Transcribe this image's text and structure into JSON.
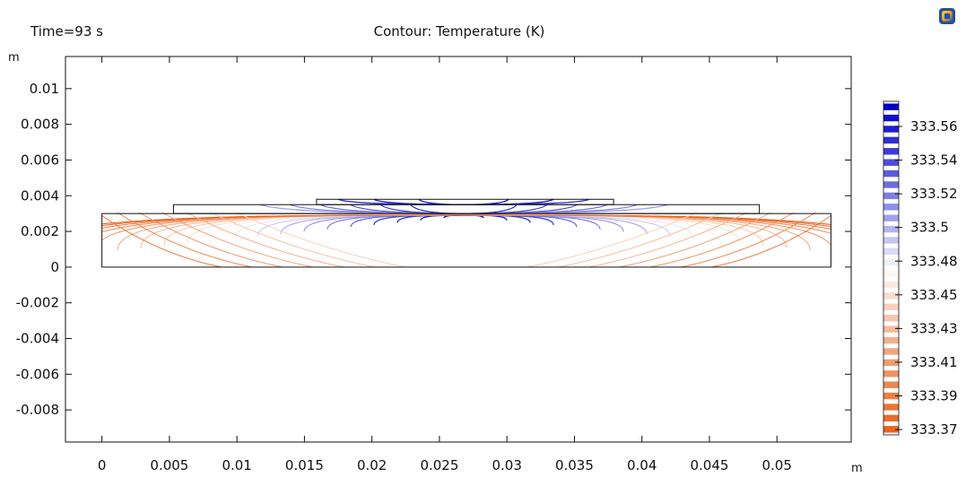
{
  "chart_data": {
    "type": "contour",
    "time_label": "Time=93 s",
    "title": "Contour: Temperature (K)",
    "x_unit": "m",
    "y_unit": "m",
    "xlim": [
      -0.0027,
      0.0555
    ],
    "ylim": [
      -0.0098,
      0.0118
    ],
    "x_ticks": [
      0,
      0.005,
      0.01,
      0.015,
      0.02,
      0.025,
      0.03,
      0.035,
      0.04,
      0.045,
      0.05
    ],
    "x_tick_labels": [
      "0",
      "0.005",
      "0.01",
      "0.015",
      "0.02",
      "0.025",
      "0.03",
      "0.035",
      "0.04",
      "0.045",
      "0.05"
    ],
    "y_ticks": [
      0.01,
      0.008,
      0.006,
      0.004,
      0.002,
      0,
      -0.002,
      -0.004,
      -0.006,
      -0.008
    ],
    "y_tick_labels": [
      "0.01",
      "0.008",
      "0.006",
      "0.004",
      "0.002",
      "0",
      "-0.002",
      "-0.004",
      "-0.006",
      "-0.008"
    ],
    "geometry": {
      "substrate": {
        "x": [
          0,
          0.054
        ],
        "y": [
          0,
          0.003
        ]
      },
      "middle_layer": {
        "x": [
          0.0053,
          0.0487
        ],
        "y": [
          0.003,
          0.0035
        ]
      },
      "top_layer": {
        "x": [
          0.0159,
          0.0379
        ],
        "y": [
          0.0035,
          0.0038
        ]
      }
    },
    "contours": {
      "center_x": 0.0268,
      "peak_y": 0.0029,
      "count": 20
    },
    "colorbar": {
      "labels": [
        "333.56",
        "333.54",
        "333.52",
        "333.5",
        "333.48",
        "333.45",
        "333.43",
        "333.41",
        "333.39",
        "333.37"
      ],
      "high_color": "#0000c8",
      "mid_color": "#ffffff",
      "low_color": "#e6641e"
    }
  },
  "toolbar": {
    "icon": "comsol-logo-icon"
  }
}
